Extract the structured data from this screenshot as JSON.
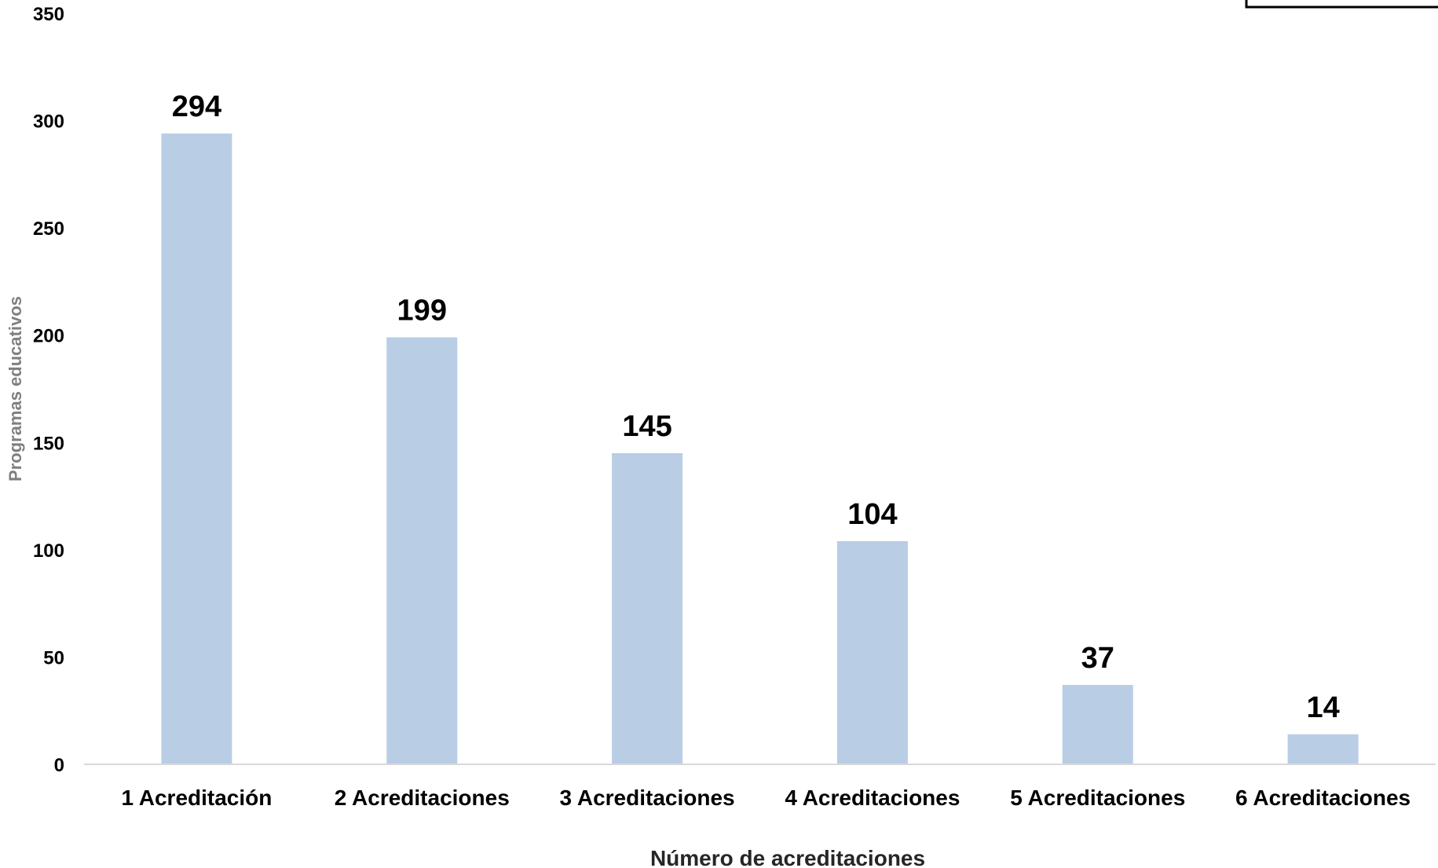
{
  "chart_data": {
    "type": "bar",
    "categories": [
      "1 Acreditación",
      "2 Acreditaciones",
      "3 Acreditaciones",
      "4 Acreditaciones",
      "5 Acreditaciones",
      "6 Acreditaciones"
    ],
    "values": [
      294,
      199,
      145,
      104,
      37,
      14
    ],
    "title": "",
    "xlabel": "Número de acreditaciones",
    "ylabel": "Programas educativos",
    "ylim": [
      0,
      350
    ],
    "yticks": [
      0,
      50,
      100,
      150,
      200,
      250,
      300,
      350
    ],
    "grid": false,
    "legend": "none",
    "colors": {
      "bar": "#b9cde5",
      "axis_line": "#d9d9d9",
      "text": "#000000",
      "axis_title_y": "#7f7f7f",
      "axis_title_x": "#262626"
    }
  }
}
